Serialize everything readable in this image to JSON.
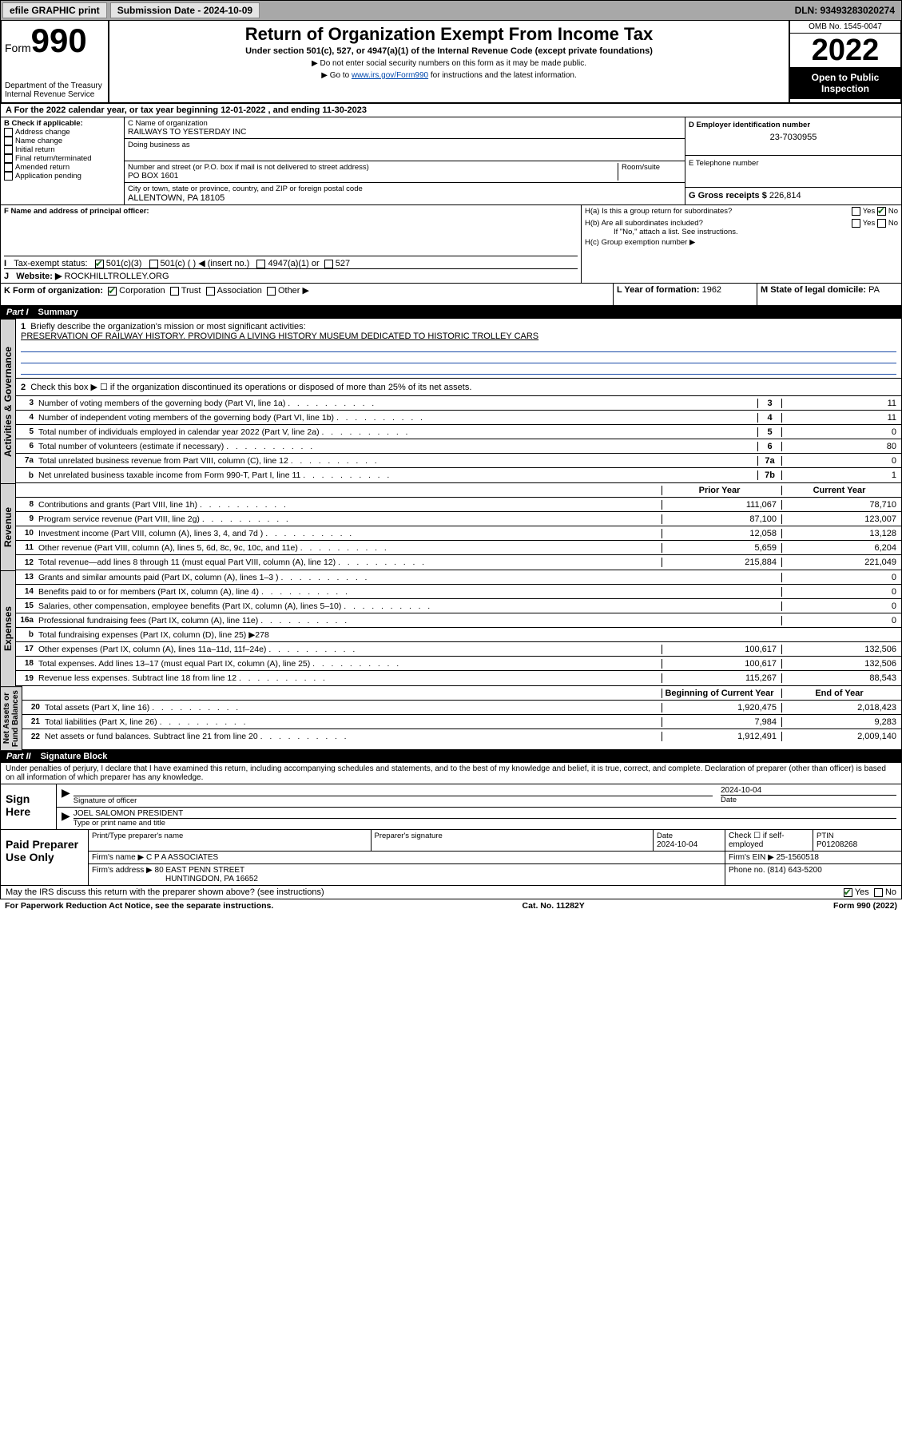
{
  "topbar": {
    "efile": "efile GRAPHIC print",
    "sub_label": "Submission Date - 2024-10-09",
    "dln": "DLN: 93493283020274"
  },
  "header": {
    "form_word": "Form",
    "form_no": "990",
    "title": "Return of Organization Exempt From Income Tax",
    "subtitle": "Under section 501(c), 527, or 4947(a)(1) of the Internal Revenue Code (except private foundations)",
    "note1": "▶ Do not enter social security numbers on this form as it may be made public.",
    "note2_pre": "▶ Go to ",
    "note2_link": "www.irs.gov/Form990",
    "note2_post": " for instructions and the latest information.",
    "dept": "Department of the Treasury\nInternal Revenue Service",
    "omb": "OMB No. 1545-0047",
    "year": "2022",
    "open": "Open to Public Inspection"
  },
  "A": {
    "text": "A For the 2022 calendar year, or tax year beginning 12-01-2022   , and ending 11-30-2023"
  },
  "B": {
    "label": "B Check if applicable:",
    "items": [
      "Address change",
      "Name change",
      "Initial return",
      "Final return/terminated",
      "Amended return",
      "Application pending"
    ]
  },
  "C": {
    "name_label": "C Name of organization",
    "name": "RAILWAYS TO YESTERDAY INC",
    "dba_label": "Doing business as",
    "addr_label": "Number and street (or P.O. box if mail is not delivered to street address)",
    "room_label": "Room/suite",
    "addr": "PO BOX 1601",
    "city_label": "City or town, state or province, country, and ZIP or foreign postal code",
    "city": "ALLENTOWN, PA  18105"
  },
  "D": {
    "label": "D Employer identification number",
    "val": "23-7030955"
  },
  "E": {
    "label": "E Telephone number",
    "val": ""
  },
  "G": {
    "label": "G Gross receipts $",
    "val": "226,814"
  },
  "F": {
    "label": "F  Name and address of principal officer:"
  },
  "H": {
    "a": "H(a)  Is this a group return for subordinates?",
    "b": "H(b)  Are all subordinates included?",
    "bnote": "If \"No,\" attach a list. See instructions.",
    "c": "H(c)  Group exemption number ▶"
  },
  "I": {
    "label": "Tax-exempt status:",
    "c501c3": "501(c)(3)",
    "c501c": "501(c) (  ) ◀ (insert no.)",
    "c4947": "4947(a)(1) or",
    "c527": "527"
  },
  "J": {
    "label": "Website: ▶",
    "val": "ROCKHILLTROLLEY.ORG"
  },
  "K": {
    "label": "K Form of organization:",
    "corp": "Corporation",
    "trust": "Trust",
    "assoc": "Association",
    "other": "Other ▶"
  },
  "L": {
    "label": "L Year of formation:",
    "val": "1962"
  },
  "M": {
    "label": "M State of legal domicile:",
    "val": "PA"
  },
  "part1": {
    "num": "Part I",
    "title": "Summary"
  },
  "summary": {
    "l1_label": "Briefly describe the organization's mission or most significant activities:",
    "l1_text": "PRESERVATION OF RAILWAY HISTORY. PROVIDING A LIVING HISTORY MUSEUM DEDICATED TO HISTORIC TROLLEY CARS",
    "l2": "Check this box ▶ ☐  if the organization discontinued its operations or disposed of more than 25% of its net assets.",
    "rows_gov": [
      {
        "n": "3",
        "t": "Number of voting members of the governing body (Part VI, line 1a)",
        "k": "3",
        "v": "11"
      },
      {
        "n": "4",
        "t": "Number of independent voting members of the governing body (Part VI, line 1b)",
        "k": "4",
        "v": "11"
      },
      {
        "n": "5",
        "t": "Total number of individuals employed in calendar year 2022 (Part V, line 2a)",
        "k": "5",
        "v": "0"
      },
      {
        "n": "6",
        "t": "Total number of volunteers (estimate if necessary)",
        "k": "6",
        "v": "80"
      },
      {
        "n": "7a",
        "t": "Total unrelated business revenue from Part VIII, column (C), line 12",
        "k": "7a",
        "v": "0"
      },
      {
        "n": "b",
        "t": "Net unrelated business taxable income from Form 990-T, Part I, line 11",
        "k": "7b",
        "v": "1"
      }
    ],
    "col_prior": "Prior Year",
    "col_curr": "Current Year",
    "rows_rev": [
      {
        "n": "8",
        "t": "Contributions and grants (Part VIII, line 1h)",
        "p": "111,067",
        "c": "78,710"
      },
      {
        "n": "9",
        "t": "Program service revenue (Part VIII, line 2g)",
        "p": "87,100",
        "c": "123,007"
      },
      {
        "n": "10",
        "t": "Investment income (Part VIII, column (A), lines 3, 4, and 7d )",
        "p": "12,058",
        "c": "13,128"
      },
      {
        "n": "11",
        "t": "Other revenue (Part VIII, column (A), lines 5, 6d, 8c, 9c, 10c, and 11e)",
        "p": "5,659",
        "c": "6,204"
      },
      {
        "n": "12",
        "t": "Total revenue—add lines 8 through 11 (must equal Part VIII, column (A), line 12)",
        "p": "215,884",
        "c": "221,049"
      }
    ],
    "rows_exp": [
      {
        "n": "13",
        "t": "Grants and similar amounts paid (Part IX, column (A), lines 1–3 )",
        "p": "",
        "c": "0"
      },
      {
        "n": "14",
        "t": "Benefits paid to or for members (Part IX, column (A), line 4)",
        "p": "",
        "c": "0"
      },
      {
        "n": "15",
        "t": "Salaries, other compensation, employee benefits (Part IX, column (A), lines 5–10)",
        "p": "",
        "c": "0"
      },
      {
        "n": "16a",
        "t": "Professional fundraising fees (Part IX, column (A), line 11e)",
        "p": "",
        "c": "0"
      },
      {
        "n": "b",
        "t": "Total fundraising expenses (Part IX, column (D), line 25) ▶278",
        "noval": true
      },
      {
        "n": "17",
        "t": "Other expenses (Part IX, column (A), lines 11a–11d, 11f–24e)",
        "p": "100,617",
        "c": "132,506"
      },
      {
        "n": "18",
        "t": "Total expenses. Add lines 13–17 (must equal Part IX, column (A), line 25)",
        "p": "100,617",
        "c": "132,506"
      },
      {
        "n": "19",
        "t": "Revenue less expenses. Subtract line 18 from line 12",
        "p": "115,267",
        "c": "88,543"
      }
    ],
    "col_begin": "Beginning of Current Year",
    "col_end": "End of Year",
    "rows_net": [
      {
        "n": "20",
        "t": "Total assets (Part X, line 16)",
        "p": "1,920,475",
        "c": "2,018,423"
      },
      {
        "n": "21",
        "t": "Total liabilities (Part X, line 26)",
        "p": "7,984",
        "c": "9,283"
      },
      {
        "n": "22",
        "t": "Net assets or fund balances. Subtract line 21 from line 20",
        "p": "1,912,491",
        "c": "2,009,140"
      }
    ]
  },
  "part2": {
    "num": "Part II",
    "title": "Signature Block"
  },
  "sig": {
    "penalty": "Under penalties of perjury, I declare that I have examined this return, including accompanying schedules and statements, and to the best of my knowledge and belief, it is true, correct, and complete. Declaration of preparer (other than officer) is based on all information of which preparer has any knowledge.",
    "sign_here": "Sign Here",
    "sig_officer": "Signature of officer",
    "date": "Date",
    "date_val": "2024-10-04",
    "officer": "JOEL SALOMON  PRESIDENT",
    "type_name": "Type or print name and title",
    "paid": "Paid Preparer Use Only",
    "p_name_label": "Print/Type preparer's name",
    "p_sig_label": "Preparer's signature",
    "p_date_label": "Date",
    "p_date": "2024-10-04",
    "p_check": "Check ☐ if self-employed",
    "ptin_label": "PTIN",
    "ptin": "P01208268",
    "firm_name_label": "Firm's name    ▶",
    "firm_name": "C P A ASSOCIATES",
    "firm_ein_label": "Firm's EIN ▶",
    "firm_ein": "25-1560518",
    "firm_addr_label": "Firm's address ▶",
    "firm_addr1": "80 EAST PENN STREET",
    "firm_addr2": "HUNTINGDON, PA  16652",
    "phone_label": "Phone no.",
    "phone": "(814) 643-5200",
    "discuss": "May the IRS discuss this return with the preparer shown above? (see instructions)",
    "yes": "Yes",
    "no": "No"
  },
  "footer": {
    "left": "For Paperwork Reduction Act Notice, see the separate instructions.",
    "mid": "Cat. No. 11282Y",
    "right": "Form 990 (2022)"
  }
}
